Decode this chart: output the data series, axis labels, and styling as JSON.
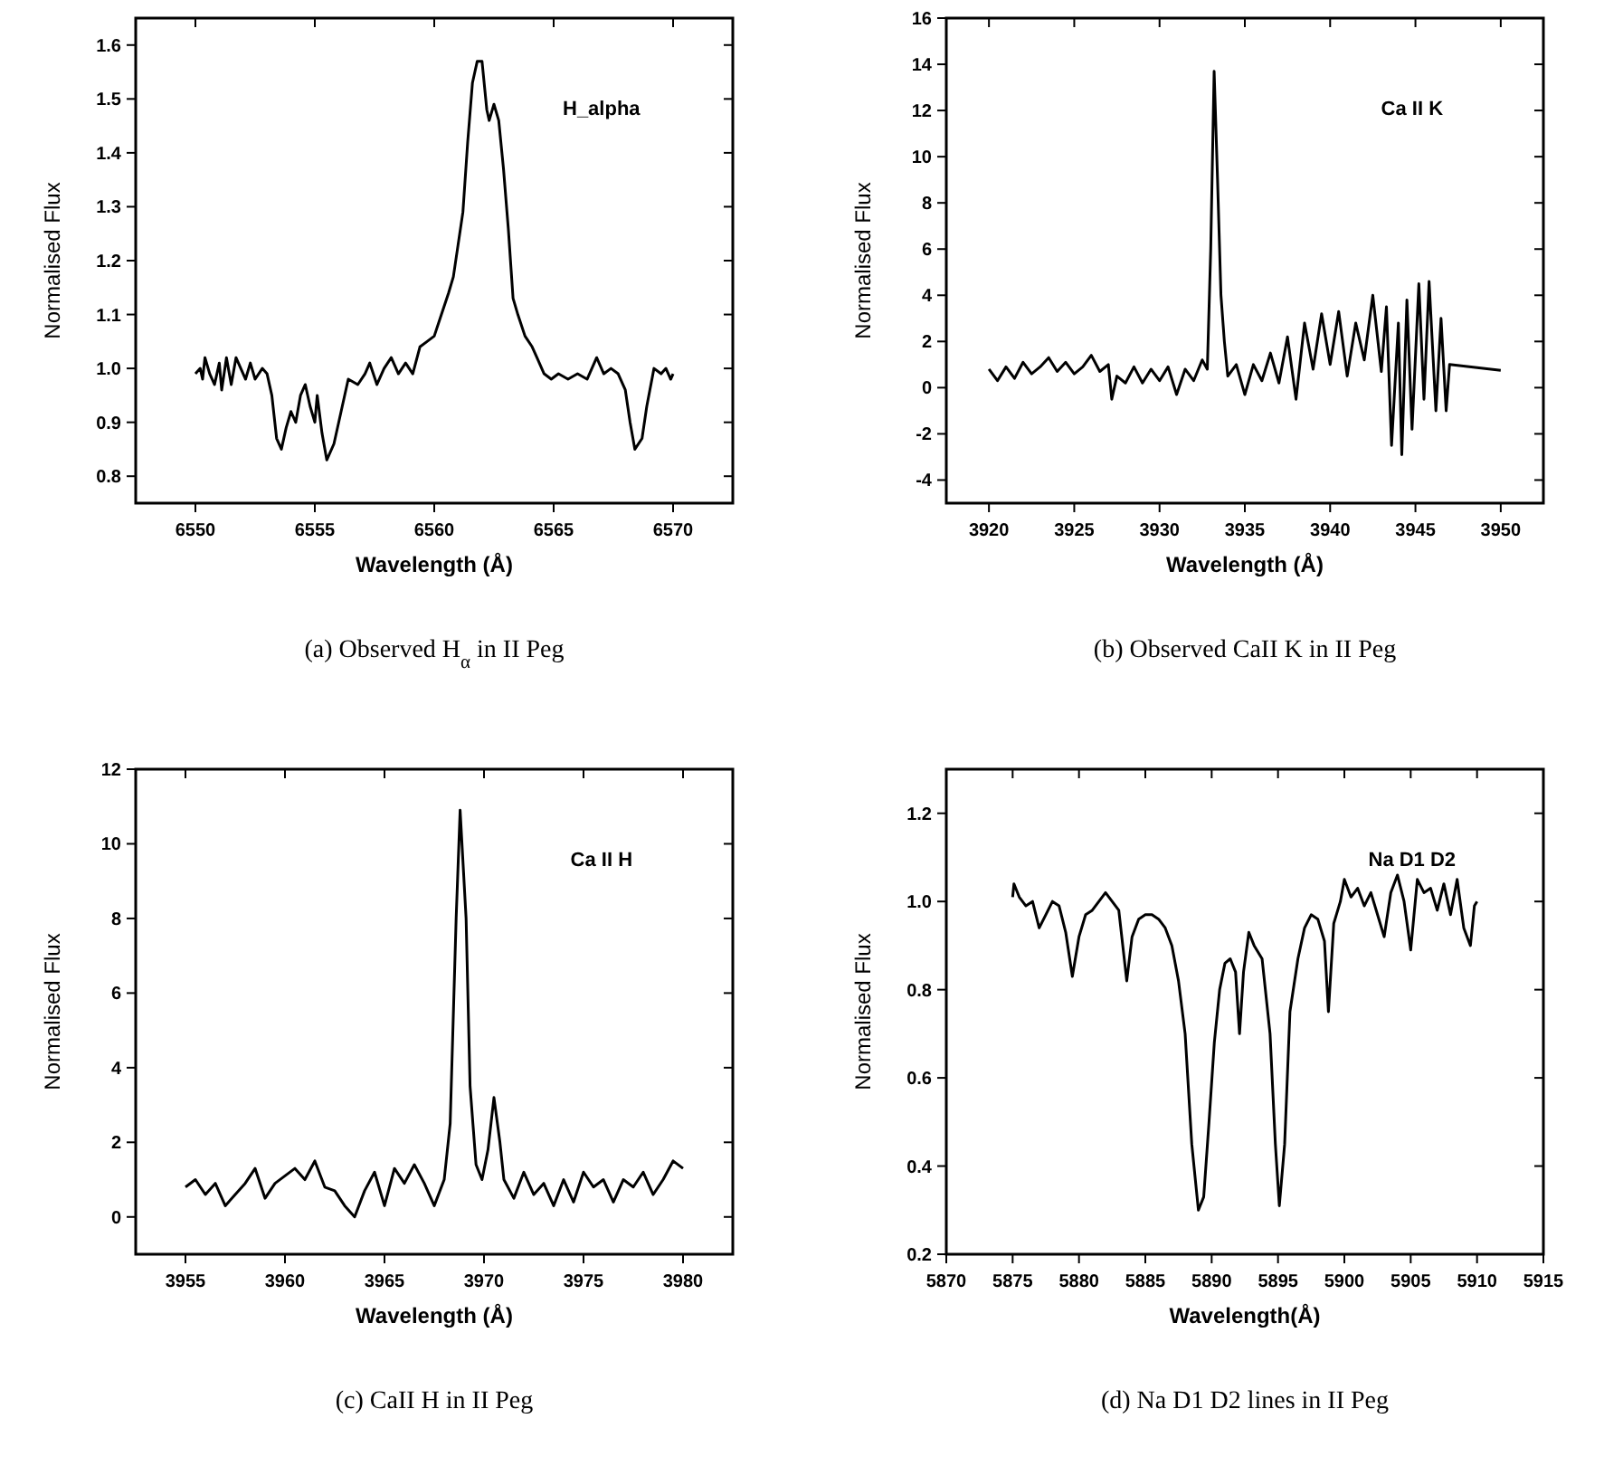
{
  "chart_data": [
    {
      "type": "line",
      "xlabel": "Wavelength (Å)",
      "ylabel": "Normalised Flux",
      "color": "#000000",
      "xlim": [
        6547.5,
        6572.5
      ],
      "xticks": [
        6550,
        6555,
        6560,
        6565,
        6570
      ],
      "ylim": [
        0.75,
        1.65
      ],
      "yticks": [
        0.8,
        0.9,
        {
          "value": 1.0,
          "label": "1.0"
        },
        1.1,
        1.2,
        1.3,
        1.4,
        1.5,
        1.6
      ],
      "annotations": [
        "H_alpha",
        "(a)  Observed H$_{α}$ in II Peg"
      ],
      "x": [
        6550.0,
        6550.2,
        6550.3,
        6550.4,
        6550.6,
        6550.8,
        6551.0,
        6551.1,
        6551.3,
        6551.5,
        6551.7,
        6551.9,
        6552.1,
        6552.3,
        6552.5,
        6552.8,
        6553.0,
        6553.2,
        6553.4,
        6553.6,
        6553.8,
        6554.0,
        6554.2,
        6554.4,
        6554.6,
        6554.8,
        6555.0,
        6555.1,
        6555.3,
        6555.5,
        6555.8,
        6556.1,
        6556.4,
        6556.8,
        6557.1,
        6557.3,
        6557.6,
        6557.9,
        6558.2,
        6558.5,
        6558.8,
        6559.1,
        6559.4,
        6559.7,
        6560.0,
        6560.3,
        6560.6,
        6560.8,
        6561.0,
        6561.2,
        6561.4,
        6561.6,
        6561.8,
        6562.0,
        6562.2,
        6562.3,
        6562.5,
        6562.7,
        6562.9,
        6563.1,
        6563.3,
        6563.5,
        6563.8,
        6564.1,
        6564.3,
        6564.6,
        6564.9,
        6565.2,
        6565.6,
        6566.0,
        6566.4,
        6566.8,
        6567.1,
        6567.4,
        6567.7,
        6568.0,
        6568.2,
        6568.4,
        6568.7,
        6568.9,
        6569.2,
        6569.5,
        6569.7,
        6569.9,
        6570.0
      ],
      "values": [
        0.99,
        1.0,
        0.98,
        1.02,
        0.99,
        0.97,
        1.01,
        0.96,
        1.02,
        0.97,
        1.02,
        1.0,
        0.98,
        1.01,
        0.98,
        1.0,
        0.99,
        0.95,
        0.87,
        0.85,
        0.89,
        0.92,
        0.9,
        0.95,
        0.97,
        0.93,
        0.9,
        0.95,
        0.88,
        0.83,
        0.86,
        0.92,
        0.98,
        0.97,
        0.99,
        1.01,
        0.97,
        1.0,
        1.02,
        0.99,
        1.01,
        0.99,
        1.04,
        1.05,
        1.06,
        1.1,
        1.14,
        1.17,
        1.23,
        1.29,
        1.42,
        1.53,
        1.57,
        1.57,
        1.48,
        1.46,
        1.49,
        1.46,
        1.37,
        1.26,
        1.13,
        1.1,
        1.06,
        1.04,
        1.02,
        0.99,
        0.98,
        0.99,
        0.98,
        0.99,
        0.98,
        1.02,
        0.99,
        1.0,
        0.99,
        0.96,
        0.9,
        0.85,
        0.87,
        0.93,
        1.0,
        0.99,
        1.0,
        0.98,
        0.99
      ]
    },
    {
      "type": "line",
      "xlabel": "Wavelength (Å)",
      "ylabel": "Normalised Flux",
      "color": "#000000",
      "xlim": [
        3917.5,
        3952.5
      ],
      "xticks": [
        3920,
        3925,
        3930,
        3935,
        3940,
        3945,
        3950
      ],
      "ylim": [
        -5,
        16
      ],
      "yticks": [
        -4,
        -2,
        0,
        2,
        4,
        6,
        8,
        10,
        12,
        14,
        16
      ],
      "annotations": [
        "Ca II K",
        "(b)  Observed CaII K in II Peg"
      ],
      "x": [
        3920,
        3920.5,
        3921,
        3921.5,
        3922,
        3922.5,
        3923,
        3923.5,
        3924,
        3924.5,
        3925,
        3925.5,
        3926,
        3926.5,
        3927,
        3927.2,
        3927.5,
        3928,
        3928.5,
        3929,
        3929.5,
        3930,
        3930.5,
        3931,
        3931.5,
        3932,
        3932.5,
        3932.8,
        3933.0,
        3933.2,
        3933.4,
        3933.6,
        3933.8,
        3934,
        3934.5,
        3935,
        3935.5,
        3936,
        3936.5,
        3937,
        3937.5,
        3938,
        3938.5,
        3939,
        3939.5,
        3940,
        3940.5,
        3941,
        3941.5,
        3942,
        3942.5,
        3943,
        3943.3,
        3943.6,
        3944,
        3944.2,
        3944.5,
        3944.8,
        3945.2,
        3945.5,
        3945.8,
        3946.2,
        3946.5,
        3946.8,
        3947.0,
        3950
      ],
      "values": [
        0.8,
        0.3,
        0.9,
        0.4,
        1.1,
        0.6,
        0.9,
        1.3,
        0.7,
        1.1,
        0.6,
        0.9,
        1.4,
        0.7,
        1.0,
        -0.5,
        0.5,
        0.2,
        0.9,
        0.2,
        0.8,
        0.3,
        0.9,
        -0.3,
        0.8,
        0.3,
        1.2,
        0.8,
        6.0,
        13.7,
        9.0,
        4.0,
        2.0,
        0.5,
        1.0,
        -0.3,
        1.0,
        0.3,
        1.5,
        0.2,
        2.2,
        -0.5,
        2.8,
        0.8,
        3.2,
        1.0,
        3.3,
        0.5,
        2.8,
        1.2,
        4.0,
        0.7,
        3.5,
        -2.5,
        2.8,
        -2.9,
        3.8,
        -1.8,
        4.5,
        -0.5,
        4.6,
        -1.0,
        3.0,
        -1.0,
        1.0,
        0.75
      ]
    },
    {
      "type": "line",
      "xlabel": "Wavelength (Å)",
      "ylabel": "Normalised Flux",
      "color": "#000000",
      "xlim": [
        3952.5,
        3982.5
      ],
      "xticks": [
        3955,
        3960,
        3965,
        3970,
        3975,
        3980
      ],
      "ylim": [
        -1,
        12
      ],
      "yticks": [
        0,
        2,
        4,
        6,
        8,
        10,
        12
      ],
      "annotations": [
        "Ca II H",
        "(c)  CaII H in II Peg"
      ],
      "x": [
        3955,
        3955.5,
        3956,
        3956.5,
        3957,
        3957.5,
        3958,
        3958.5,
        3959,
        3959.5,
        3960,
        3960.5,
        3961,
        3961.5,
        3962,
        3962.5,
        3963,
        3963.5,
        3964,
        3964.5,
        3965,
        3965.5,
        3966,
        3966.5,
        3967,
        3967.5,
        3968,
        3968.3,
        3968.6,
        3968.8,
        3969.1,
        3969.3,
        3969.6,
        3969.9,
        3970.2,
        3970.5,
        3970.8,
        3971,
        3971.5,
        3972,
        3972.5,
        3973,
        3973.5,
        3974,
        3974.5,
        3975,
        3975.5,
        3976,
        3976.5,
        3977,
        3977.5,
        3978,
        3978.5,
        3979,
        3979.5,
        3980
      ],
      "values": [
        0.8,
        1.0,
        0.6,
        0.9,
        0.3,
        0.6,
        0.9,
        1.3,
        0.5,
        0.9,
        1.1,
        1.3,
        1.0,
        1.5,
        0.8,
        0.7,
        0.3,
        0.0,
        0.7,
        1.2,
        0.3,
        1.3,
        0.9,
        1.4,
        0.9,
        0.3,
        1.0,
        2.5,
        8.0,
        10.9,
        8.0,
        3.5,
        1.4,
        1.0,
        1.8,
        3.2,
        2.0,
        1.0,
        0.5,
        1.2,
        0.6,
        0.9,
        0.3,
        1.0,
        0.4,
        1.2,
        0.8,
        1.0,
        0.4,
        1.0,
        0.8,
        1.2,
        0.6,
        1.0,
        1.5,
        1.3
      ]
    },
    {
      "type": "line",
      "xlabel": "Wavelength(Å)",
      "ylabel": "Normalised Flux",
      "color": "#000000",
      "xlim": [
        5870,
        5915
      ],
      "xticks": [
        5870,
        5875,
        5880,
        5885,
        5890,
        5895,
        5900,
        5905,
        5910,
        5915
      ],
      "ylim": [
        0.2,
        1.3
      ],
      "yticks": [
        0.2,
        0.4,
        0.6,
        0.8,
        {
          "value": 1.0,
          "label": "1.0"
        },
        1.2
      ],
      "annotations": [
        "Na D1 D2",
        "(d)  Na D1 D2 lines in II Peg"
      ],
      "x": [
        5875,
        5875.1,
        5875.5,
        5876,
        5876.5,
        5877,
        5877.5,
        5878,
        5878.5,
        5879.0,
        5879.5,
        5880.0,
        5880.5,
        5881,
        5881.5,
        5882,
        5882.5,
        5883,
        5883.6,
        5884,
        5884.5,
        5885,
        5885.5,
        5886,
        5886.5,
        5887,
        5887.5,
        5888,
        5888.5,
        5889.0,
        5889.4,
        5889.8,
        5890.2,
        5890.6,
        5891.0,
        5891.4,
        5891.8,
        5892.1,
        5892.4,
        5892.8,
        5893.2,
        5893.8,
        5894.4,
        5894.8,
        5895.1,
        5895.5,
        5895.9,
        5896.5,
        5897,
        5897.5,
        5898,
        5898.5,
        5898.8,
        5899.2,
        5899.7,
        5900,
        5900.5,
        5901,
        5901.5,
        5902,
        5902.5,
        5903,
        5903.5,
        5904,
        5904.5,
        5905,
        5905.5,
        5906,
        5906.5,
        5907,
        5907.5,
        5908,
        5908.5,
        5909,
        5909.5,
        5909.8,
        5910
      ],
      "values": [
        1.01,
        1.04,
        1.01,
        0.99,
        1.0,
        0.94,
        0.97,
        1.0,
        0.99,
        0.93,
        0.83,
        0.92,
        0.97,
        0.98,
        1.0,
        1.02,
        1.0,
        0.98,
        0.82,
        0.92,
        0.96,
        0.97,
        0.97,
        0.96,
        0.94,
        0.9,
        0.82,
        0.7,
        0.45,
        0.3,
        0.33,
        0.5,
        0.68,
        0.8,
        0.86,
        0.87,
        0.84,
        0.7,
        0.84,
        0.93,
        0.9,
        0.87,
        0.7,
        0.45,
        0.31,
        0.45,
        0.75,
        0.87,
        0.94,
        0.97,
        0.96,
        0.91,
        0.75,
        0.95,
        1.0,
        1.05,
        1.01,
        1.03,
        0.99,
        1.02,
        0.97,
        0.92,
        1.02,
        1.06,
        1.0,
        0.89,
        1.05,
        1.02,
        1.03,
        0.98,
        1.04,
        0.97,
        1.05,
        0.94,
        0.9,
        0.99,
        1.0
      ]
    }
  ]
}
